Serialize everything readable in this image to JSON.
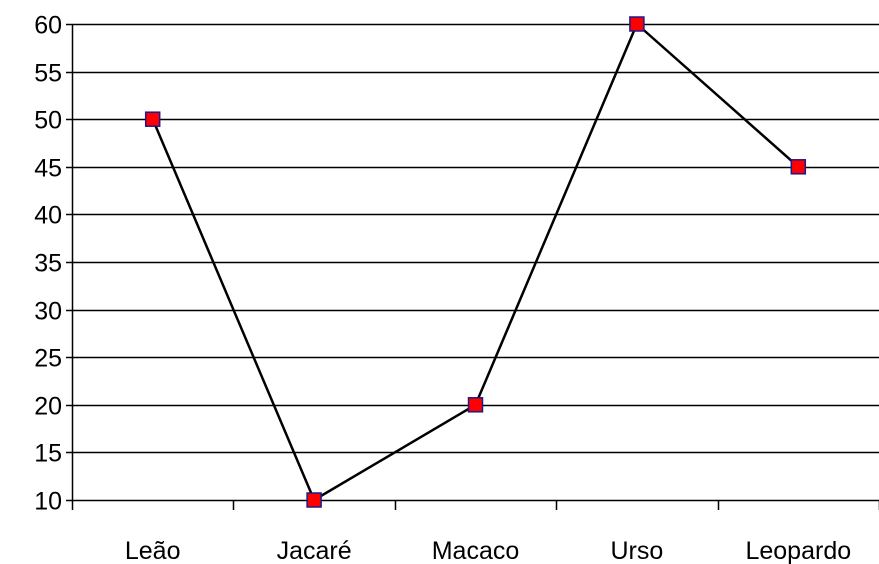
{
  "chart_data": {
    "type": "line",
    "categories": [
      "Leão",
      "Jacaré",
      "Macaco",
      "Urso",
      "Leopardo"
    ],
    "series": [
      {
        "values": [
          50,
          10,
          20,
          60,
          45
        ]
      }
    ],
    "ylim": [
      10,
      60
    ],
    "yticks": [
      10,
      15,
      20,
      25,
      30,
      35,
      40,
      45,
      50,
      55,
      60
    ],
    "grid": true,
    "legend": "none",
    "colors": {
      "line": "#000000",
      "marker_fill": "#ff0000",
      "marker_stroke": "#1a1a8c",
      "grid": "#000000",
      "axis": "#000000"
    }
  }
}
